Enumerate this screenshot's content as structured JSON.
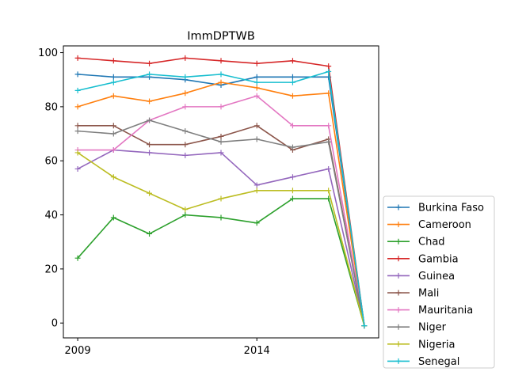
{
  "chart_data": {
    "type": "line",
    "title": "ImmDPTWB",
    "xlabel": "",
    "ylabel": "",
    "x": [
      2009,
      2010,
      2011,
      2012,
      2013,
      2014,
      2015,
      2016,
      2017
    ],
    "xlim": [
      2008.6,
      2017.4
    ],
    "ylim": [
      -5.5,
      102.5
    ],
    "xticks": [
      2009,
      2014
    ],
    "yticks": [
      0,
      20,
      40,
      60,
      80,
      100
    ],
    "grid": false,
    "legend_position": "lower-right-outside",
    "series": [
      {
        "name": "Burkina Faso",
        "color": "#1f77b4",
        "values": [
          92,
          91,
          91,
          90,
          88,
          91,
          91,
          91,
          -1
        ]
      },
      {
        "name": "Cameroon",
        "color": "#ff7f0e",
        "values": [
          80,
          84,
          82,
          85,
          89,
          87,
          84,
          85,
          -1
        ]
      },
      {
        "name": "Chad",
        "color": "#2ca02c",
        "values": [
          24,
          39,
          33,
          40,
          39,
          37,
          46,
          46,
          -1
        ]
      },
      {
        "name": "Gambia",
        "color": "#d62728",
        "values": [
          98,
          97,
          96,
          98,
          97,
          96,
          97,
          95,
          -1
        ]
      },
      {
        "name": "Guinea",
        "color": "#9467bd",
        "values": [
          57,
          64,
          63,
          62,
          63,
          51,
          54,
          57,
          -1
        ]
      },
      {
        "name": "Mali",
        "color": "#8c564b",
        "values": [
          73,
          73,
          66,
          66,
          69,
          73,
          64,
          68,
          -1
        ]
      },
      {
        "name": "Mauritania",
        "color": "#e377c2",
        "values": [
          64,
          64,
          75,
          80,
          80,
          84,
          73,
          73,
          -1
        ]
      },
      {
        "name": "Niger",
        "color": "#7f7f7f",
        "values": [
          71,
          70,
          75,
          71,
          67,
          68,
          65,
          67,
          -1
        ]
      },
      {
        "name": "Nigeria",
        "color": "#bcbd22",
        "values": [
          63,
          54,
          48,
          42,
          46,
          49,
          49,
          49,
          -1
        ]
      },
      {
        "name": "Senegal",
        "color": "#17becf",
        "values": [
          86,
          89,
          92,
          91,
          92,
          89,
          89,
          93,
          -1
        ]
      }
    ]
  }
}
